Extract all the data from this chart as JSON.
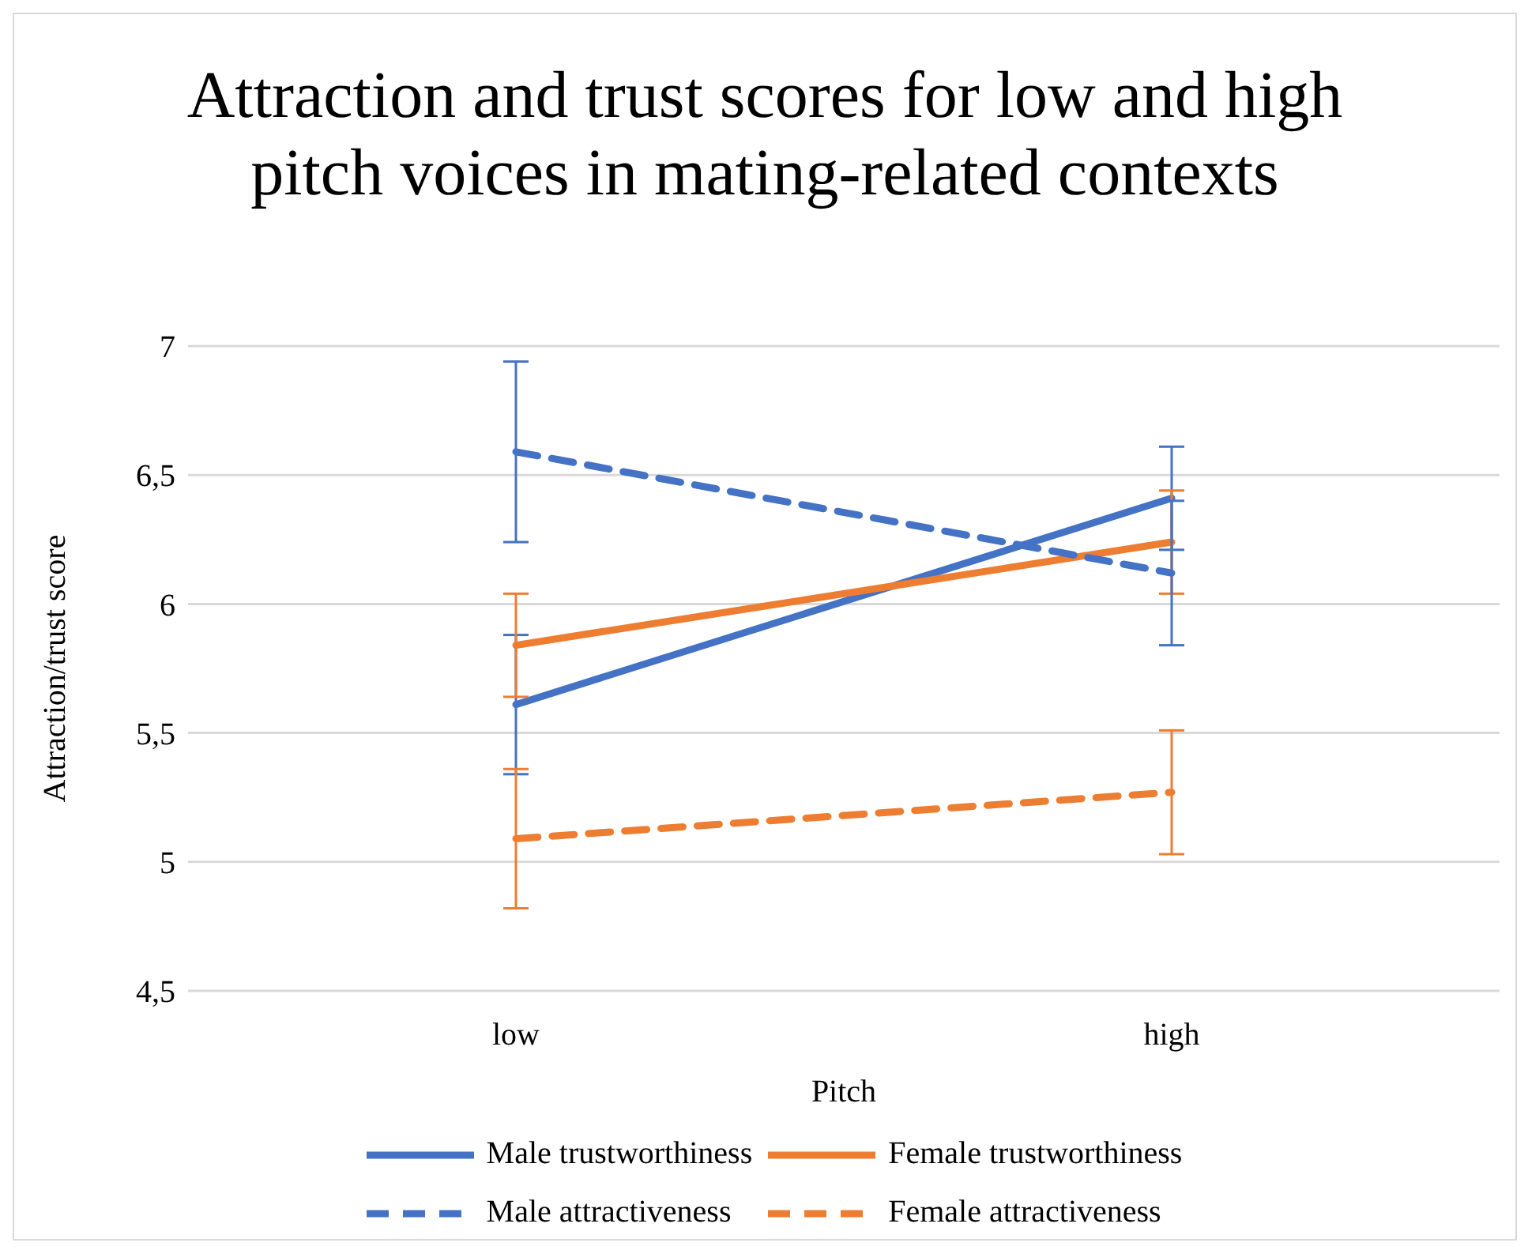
{
  "chart_data": {
    "type": "line",
    "title": "Attraction and trust scores for low and high pitch voices in mating-related contexts",
    "xlabel": "Pitch",
    "ylabel": "Attraction/trust score",
    "categories": [
      "low",
      "high"
    ],
    "series": [
      {
        "name": "Male trustworthiness",
        "color": "#4472c4",
        "line_style": "solid",
        "values": [
          5.61,
          6.41
        ],
        "errors": [
          0.27,
          0.2
        ]
      },
      {
        "name": "Female trustworthiness",
        "color": "#ed7d31",
        "line_style": "solid",
        "values": [
          5.84,
          6.24
        ],
        "errors": [
          0.2,
          0.2
        ]
      },
      {
        "name": "Male attractiveness",
        "color": "#4472c4",
        "line_style": "dashed",
        "values": [
          6.59,
          6.12
        ],
        "errors": [
          0.35,
          0.28
        ]
      },
      {
        "name": "Female attractiveness",
        "color": "#ed7d31",
        "line_style": "dashed",
        "values": [
          5.09,
          5.27
        ],
        "errors": [
          0.27,
          0.24
        ]
      }
    ],
    "ylim": [
      4.5,
      7
    ],
    "yticks": [
      {
        "value": 4.5,
        "label": "4,5"
      },
      5,
      {
        "value": 5.5,
        "label": "5,5"
      },
      6,
      {
        "value": 6.5,
        "label": "6,5"
      },
      7
    ],
    "grid": "y",
    "legend": "bottom",
    "marker": "none"
  }
}
